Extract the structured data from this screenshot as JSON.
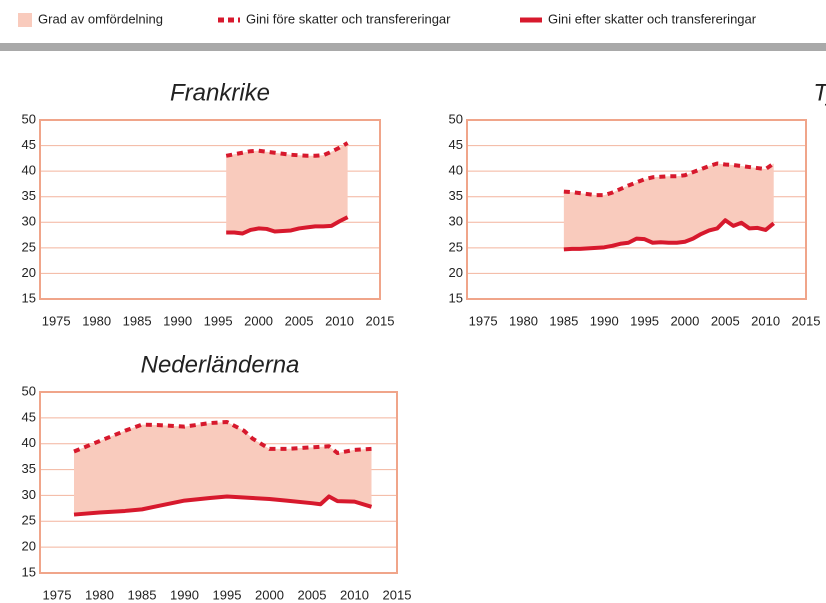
{
  "legend": [
    {
      "name": "Grad av omfördelning",
      "color": "#f9cbbd"
    },
    {
      "name": "Gini före skatter och transfereringar",
      "color": "#d7192d"
    },
    {
      "name": "Gini efter skatter och transfereringar",
      "color": "#d7192d"
    }
  ],
  "chart_data": [
    {
      "type": "line",
      "title": "Frankrike",
      "x": [
        1996,
        1997,
        1998,
        1999,
        2000,
        2001,
        2002,
        2003,
        2004,
        2005,
        2006,
        2007,
        2008,
        2009,
        2010,
        2011
      ],
      "series": [
        {
          "color": "#d7192d",
          "dash": true,
          "values": [
            43,
            43.3,
            43.6,
            43.9,
            44,
            43.8,
            43.6,
            43.4,
            43.2,
            43.1,
            43,
            43,
            43.1,
            43.8,
            44.6,
            45.5
          ]
        },
        {
          "color": "#d7192d",
          "dash": false,
          "values": [
            28,
            28,
            27.8,
            28.5,
            28.8,
            28.7,
            28.2,
            28.3,
            28.4,
            28.8,
            29,
            29.2,
            29.2,
            29.3,
            30.2,
            31
          ]
        }
      ],
      "xlim": [
        1973,
        2015
      ],
      "xticks": [
        1975,
        1980,
        1985,
        1990,
        1995,
        2000,
        2005,
        2010,
        2015
      ],
      "ylim": [
        15,
        50
      ],
      "yticks": [
        15,
        20,
        25,
        30,
        35,
        40,
        45,
        50
      ],
      "grid": true
    },
    {
      "type": "line",
      "title": "Tyskland",
      "x": [
        1985,
        1986,
        1987,
        1988,
        1989,
        1990,
        1991,
        1992,
        1993,
        1994,
        1995,
        1996,
        1997,
        1998,
        1999,
        2000,
        2001,
        2002,
        2003,
        2004,
        2005,
        2006,
        2007,
        2008,
        2009,
        2010,
        2011
      ],
      "series": [
        {
          "color": "#d7192d",
          "dash": true,
          "values": [
            36,
            35.9,
            35.7,
            35.5,
            35.3,
            35.3,
            35.8,
            36.5,
            37.2,
            37.8,
            38.4,
            38.8,
            38.9,
            39,
            39,
            39.2,
            39.8,
            40.4,
            41,
            41.5,
            41.3,
            41.2,
            41,
            40.8,
            40.6,
            40.4,
            41.5
          ]
        },
        {
          "color": "#d7192d",
          "dash": false,
          "values": [
            24.7,
            24.8,
            24.8,
            24.9,
            25,
            25.1,
            25.4,
            25.8,
            26,
            26.8,
            26.7,
            26,
            26.1,
            26,
            26,
            26.2,
            26.8,
            27.7,
            28.4,
            28.8,
            30.4,
            29.3,
            29.9,
            28.8,
            28.9,
            28.5,
            29.8
          ]
        }
      ],
      "xlim": [
        1973,
        2015
      ],
      "xticks": [
        1975,
        1980,
        1985,
        1990,
        1995,
        2000,
        2005,
        2010,
        2015
      ],
      "ylim": [
        15,
        50
      ],
      "yticks": [
        15,
        20,
        25,
        30,
        35,
        40,
        45,
        50
      ],
      "grid": true
    },
    {
      "type": "line",
      "title": "Nederländerna",
      "x": [
        1977,
        1980,
        1983,
        1985,
        1987,
        1990,
        1993,
        1995,
        1997,
        1998,
        2000,
        2002,
        2005,
        2006,
        2007,
        2008,
        2010,
        2012
      ],
      "series": [
        {
          "color": "#d7192d",
          "dash": true,
          "values": [
            38.5,
            40.5,
            42.5,
            43.7,
            43.6,
            43.3,
            44,
            44.2,
            42.5,
            41,
            39,
            39,
            39.3,
            39.4,
            39.5,
            38.2,
            38.8,
            39
          ]
        },
        {
          "color": "#d7192d",
          "dash": false,
          "values": [
            26.3,
            26.7,
            27,
            27.3,
            28,
            29,
            29.5,
            29.8,
            29.6,
            29.5,
            29.3,
            29,
            28.5,
            28.3,
            29.8,
            28.9,
            28.8,
            27.8
          ]
        }
      ],
      "xlim": [
        1973,
        2015
      ],
      "xticks": [
        1975,
        1980,
        1985,
        1990,
        1995,
        2000,
        2005,
        2010,
        2015
      ],
      "ylim": [
        15,
        50
      ],
      "yticks": [
        15,
        20,
        25,
        30,
        35,
        40,
        45,
        50
      ],
      "grid": true
    }
  ]
}
